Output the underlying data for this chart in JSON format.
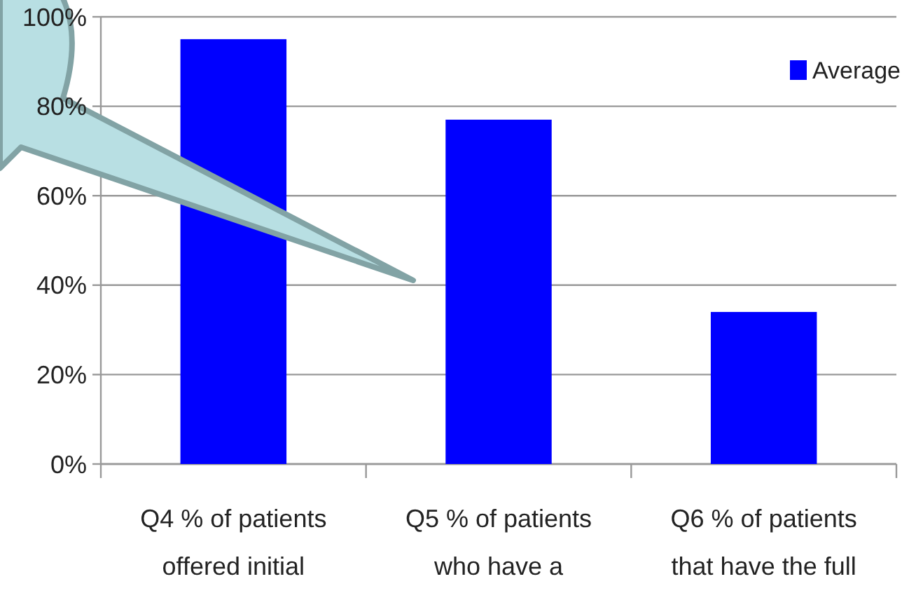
{
  "chart_data": {
    "type": "bar",
    "categories": [
      "Q4 % of patients offered initial",
      "Q5 % of patients who have a",
      "Q6 % of patients that have the full"
    ],
    "series": [
      {
        "name": "Average",
        "color": "#0000ff",
        "values": [
          95,
          77,
          34
        ]
      }
    ],
    "ylim": [
      0,
      100
    ],
    "yticks": [
      {
        "value": 0,
        "label": "0%"
      },
      {
        "value": 20,
        "label": "20%"
      },
      {
        "value": 40,
        "label": "40%"
      },
      {
        "value": 60,
        "label": "60%"
      },
      {
        "value": 80,
        "label": "80%"
      },
      {
        "value": 100,
        "label": "100%"
      }
    ],
    "grid": "y",
    "legend": "top right"
  }
}
